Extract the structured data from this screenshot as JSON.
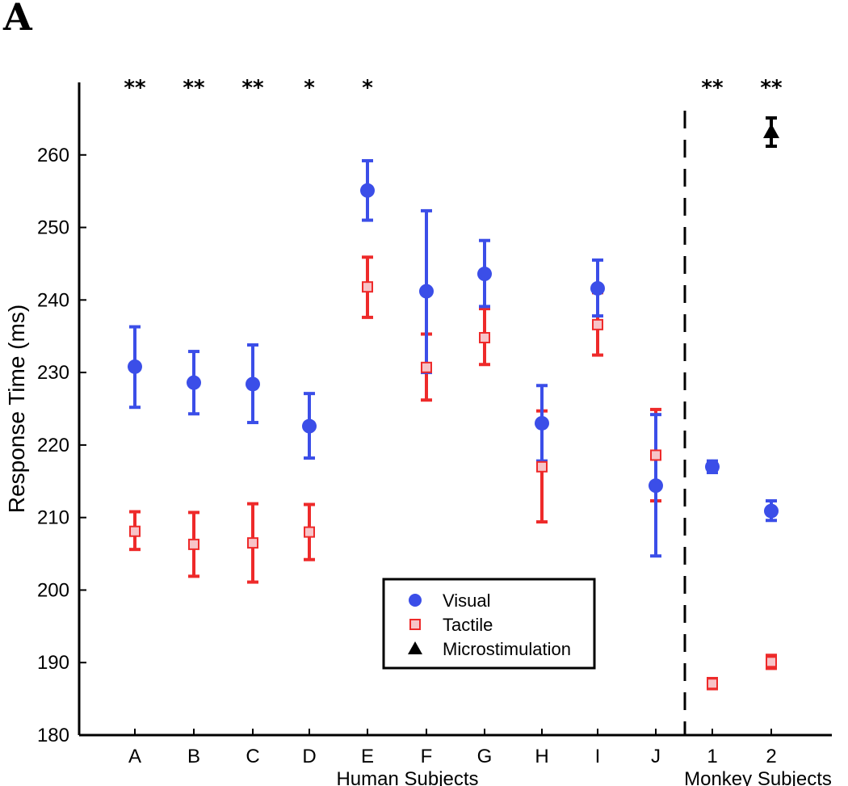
{
  "panel_label": "A",
  "chart_data": {
    "type": "scatter",
    "title": "",
    "ylabel": "Response Time (ms)",
    "ylim": [
      180,
      270
    ],
    "yticks": [
      180,
      190,
      200,
      210,
      220,
      230,
      240,
      250,
      260
    ],
    "categories": [
      "A",
      "B",
      "C",
      "D",
      "E",
      "F",
      "G",
      "H",
      "I",
      "J",
      "1",
      "2"
    ],
    "groups": [
      {
        "label": "Human Subjects",
        "categories": [
          "A",
          "B",
          "C",
          "D",
          "E",
          "F",
          "G",
          "H",
          "I",
          "J"
        ]
      },
      {
        "label": "Monkey Subjects",
        "categories": [
          "1",
          "2"
        ]
      }
    ],
    "divider_after": "J",
    "significance": [
      "**",
      "**",
      "**",
      "*",
      "*",
      "",
      "",
      "",
      "",
      "",
      "**",
      "**"
    ],
    "series": [
      {
        "name": "Visual",
        "marker": "circle",
        "color": "#3b4ee8",
        "values": [
          230.8,
          228.6,
          228.4,
          222.6,
          255.1,
          241.2,
          243.6,
          223.0,
          241.6,
          214.4,
          217.0,
          210.9
        ],
        "err_low": [
          225.2,
          224.3,
          223.1,
          218.2,
          251.0,
          230.0,
          239.1,
          217.8,
          237.8,
          204.7,
          216.2,
          209.6
        ],
        "err_high": [
          236.3,
          232.9,
          233.8,
          227.1,
          259.2,
          252.3,
          248.2,
          228.2,
          245.5,
          224.2,
          217.8,
          212.3
        ]
      },
      {
        "name": "Tactile",
        "marker": "square",
        "color": "#ee2a2a",
        "fill": "#f7c4c8",
        "values": [
          208.1,
          206.3,
          206.5,
          208.0,
          241.8,
          230.7,
          234.8,
          217.0,
          236.6,
          218.6,
          187.1,
          190.1
        ],
        "err_low": [
          205.6,
          201.9,
          201.1,
          204.2,
          237.6,
          226.2,
          231.1,
          209.4,
          232.4,
          212.3,
          186.4,
          189.2
        ],
        "err_high": [
          210.8,
          210.7,
          211.9,
          211.8,
          245.9,
          235.3,
          238.8,
          224.7,
          241.0,
          224.9,
          187.8,
          191.0
        ]
      },
      {
        "name": "Microstimulation",
        "marker": "triangle",
        "color": "#000000",
        "values": [
          null,
          null,
          null,
          null,
          null,
          null,
          null,
          null,
          null,
          null,
          null,
          263.2
        ],
        "err_low": [
          null,
          null,
          null,
          null,
          null,
          null,
          null,
          null,
          null,
          null,
          null,
          261.2
        ],
        "err_high": [
          null,
          null,
          null,
          null,
          null,
          null,
          null,
          null,
          null,
          null,
          null,
          265.1
        ]
      }
    ],
    "legend": {
      "placement": "lower-center",
      "entries": [
        {
          "label": "Visual",
          "marker": "circle",
          "color": "#3b4ee8"
        },
        {
          "label": "Tactile",
          "marker": "square",
          "color": "#ee2a2a"
        },
        {
          "label": "Microstimulation",
          "marker": "triangle",
          "color": "#000000"
        }
      ]
    },
    "grid": false
  }
}
